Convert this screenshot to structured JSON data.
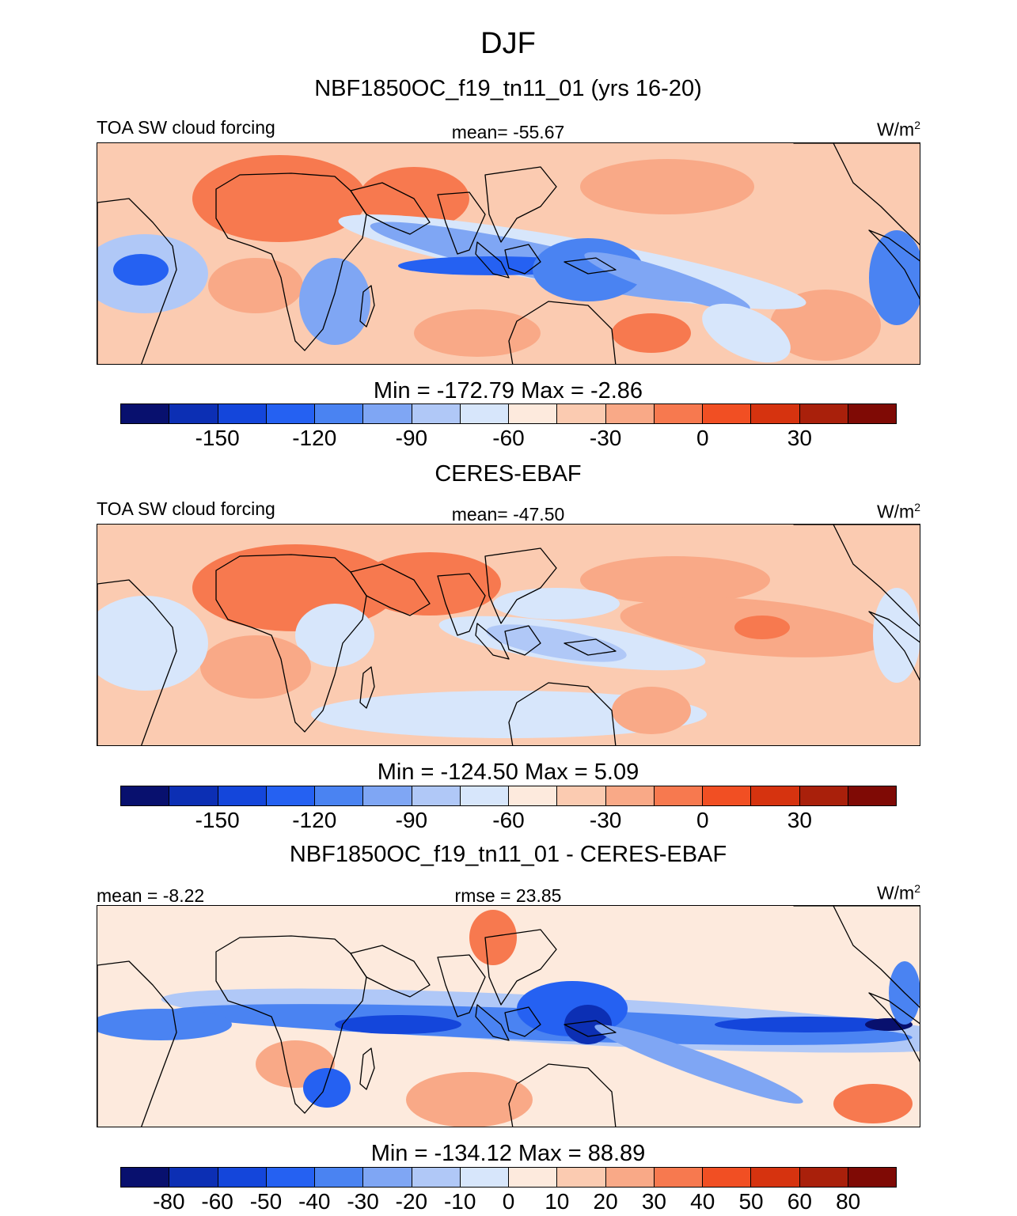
{
  "page": {
    "season": "DJF",
    "units_base": "W/m",
    "units_exp": "2"
  },
  "panels": [
    {
      "title": "NBF1850OC_f19_tn11_01 (yrs 16-20)",
      "left_label": "TOA SW cloud forcing",
      "center_label": "mean= -55.67",
      "minmax": "Min = -172.79 Max =   -2.86",
      "style": "model"
    },
    {
      "title": "CERES-EBAF",
      "left_label": "TOA SW cloud forcing",
      "center_label": "mean= -47.50",
      "minmax": "Min = -124.50 Max =   5.09",
      "style": "obs"
    },
    {
      "title": "NBF1850OC_f19_tn11_01 - CERES-EBAF",
      "left_label": "mean =  -8.22",
      "center_label": "rmse =  23.85",
      "minmax": "Min = -134.12 Max =  88.89",
      "style": "diff"
    }
  ],
  "chart_data": [
    {
      "type": "heatmap",
      "title": "NBF1850OC_f19_tn11_01 (yrs 16-20)",
      "variable": "TOA SW cloud forcing",
      "units": "W/m2",
      "mean": -55.67,
      "min": -172.79,
      "max": -2.86,
      "colorbar_levels": [
        -165,
        -150,
        -135,
        -120,
        -105,
        -90,
        -75,
        -60,
        -45,
        -30,
        -15,
        0,
        15,
        30,
        45
      ],
      "colorbar_tick_labels": [
        "-150",
        "-120",
        "-90",
        "-60",
        "-30",
        "0",
        "30"
      ]
    },
    {
      "type": "heatmap",
      "title": "CERES-EBAF",
      "variable": "TOA SW cloud forcing",
      "units": "W/m2",
      "mean": -47.5,
      "min": -124.5,
      "max": 5.09,
      "colorbar_levels": [
        -165,
        -150,
        -135,
        -120,
        -105,
        -90,
        -75,
        -60,
        -45,
        -30,
        -15,
        0,
        15,
        30,
        45
      ],
      "colorbar_tick_labels": [
        "-150",
        "-120",
        "-90",
        "-60",
        "-30",
        "0",
        "30"
      ]
    },
    {
      "type": "heatmap",
      "title": "NBF1850OC_f19_tn11_01 - CERES-EBAF",
      "units": "W/m2",
      "mean": -8.22,
      "rmse": 23.85,
      "min": -134.12,
      "max": 88.89,
      "colorbar_levels": [
        -80,
        -60,
        -50,
        -40,
        -30,
        -20,
        -10,
        0,
        10,
        20,
        30,
        40,
        50,
        60,
        80
      ],
      "colorbar_tick_labels": [
        "-80",
        "-60",
        "-50",
        "-40",
        "-30",
        "-20",
        "-10",
        "0",
        "10",
        "20",
        "30",
        "40",
        "50",
        "60",
        "80"
      ]
    }
  ],
  "colors": [
    "#08106e",
    "#0c2fb4",
    "#1446db",
    "#2561f2",
    "#4a83f2",
    "#7fa6f4",
    "#b0c8f7",
    "#d7e6fb",
    "#fdeadd",
    "#fbcbb1",
    "#f9a987",
    "#f7794f",
    "#f14f23",
    "#d6330f",
    "#a9200b",
    "#7f0a05"
  ]
}
